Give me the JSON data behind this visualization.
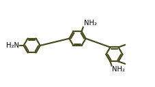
{
  "bg_color": "#ffffff",
  "line_color": "#4a4a20",
  "text_color": "#000000",
  "line_width": 1.6,
  "font_size": 7.2,
  "ring_r": 0.28,
  "xlim": [
    0.0,
    5.2
  ],
  "ylim": [
    0.3,
    2.8
  ]
}
